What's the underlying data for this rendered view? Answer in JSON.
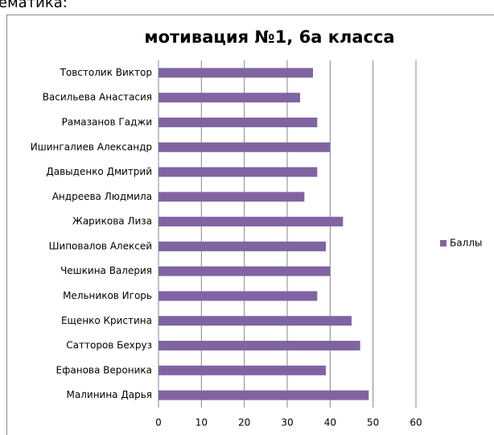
{
  "caption": "ематика:",
  "chart_data": {
    "type": "barh",
    "title": "мотивация №1, 6а класса",
    "categories": [
      "Товстолик Виктор",
      "Васильева Анастасия",
      "Рамазанов Гаджи",
      "Ишингалиев Александр",
      "Давыденко Дмитрий",
      "Андреева Людмила",
      "Жарикова Лиза",
      "Шиповалов Алексей",
      "Чешкина Валерия",
      "Мельников Игорь",
      "Ещенко Кристина",
      "Сатторов Бехруз",
      "Ефанова Вероника",
      "Малинина Дарья"
    ],
    "series": [
      {
        "name": "Баллы",
        "color": "#8064a2",
        "values": [
          36,
          33,
          37,
          40,
          37,
          34,
          43,
          39,
          40,
          37,
          45,
          47,
          39,
          49
        ]
      }
    ],
    "xlim": [
      0,
      60
    ],
    "xticks": [
      0,
      10,
      20,
      30,
      40,
      50,
      60
    ],
    "grid": true,
    "legend": "right"
  }
}
